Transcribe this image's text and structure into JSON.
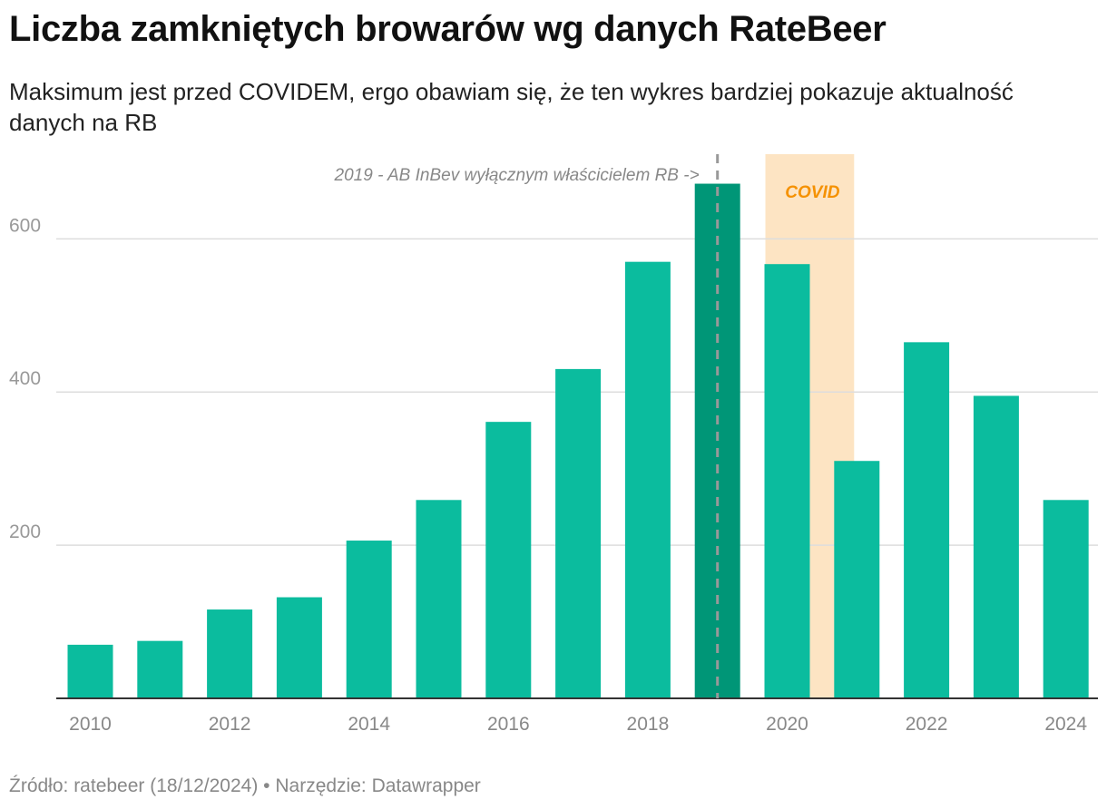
{
  "header": {
    "title": "Liczba zamkniętych browarów wg danych RateBeer",
    "subtitle": "Maksimum jest przed COVIDEM, ergo obawiam się, że ten wykres bardziej pokazuje aktualność danych na RB"
  },
  "footer": {
    "source": "Źródło: ratebeer (18/12/2024) • Narzędzie: Datawrapper"
  },
  "colors": {
    "bar": "#0bbc9e",
    "highlight_bar": "#009677",
    "covid_band": "#fde4c3",
    "covid_text": "#f59100",
    "annotation_text": "#888888",
    "grid": "#dddddd"
  },
  "chart_data": {
    "type": "bar",
    "title": "Liczba zamkniętych browarów wg danych RateBeer",
    "xlabel": "",
    "ylabel": "",
    "ylim": [
      0,
      720
    ],
    "grid": true,
    "categories": [
      "2010",
      "2011",
      "2012",
      "2013",
      "2014",
      "2015",
      "2016",
      "2017",
      "2018",
      "2019",
      "2020",
      "2021",
      "2022",
      "2023",
      "2024"
    ],
    "values": [
      70,
      75,
      116,
      132,
      206,
      259,
      361,
      430,
      570,
      672,
      567,
      310,
      465,
      395,
      259
    ],
    "highlight_category": "2019",
    "x_tick_labels": [
      "2010",
      "2012",
      "2014",
      "2016",
      "2018",
      "2020",
      "2022",
      "2024"
    ],
    "y_ticks": [
      200,
      400,
      600
    ],
    "y_tick_labels": [
      "200",
      "400",
      "600"
    ],
    "annotations": {
      "ownership_line_label": "2019 - AB InBev wyłącznym właścicielem RB ->",
      "covid_label": "COVID"
    }
  }
}
